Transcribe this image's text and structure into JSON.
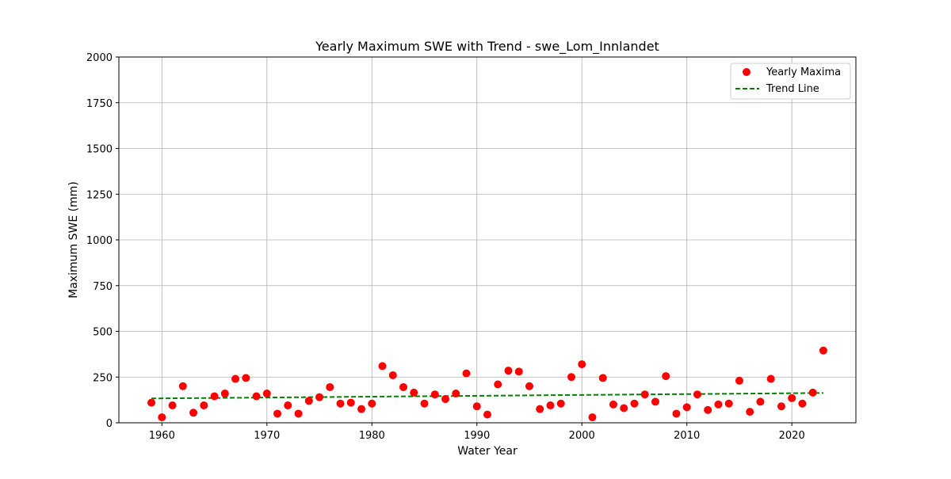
{
  "chart_data": {
    "type": "scatter",
    "title": "Yearly Maximum SWE with Trend - swe_Lom_Innlandet",
    "xlabel": "Water Year",
    "ylabel": "Maximum SWE (mm)",
    "xlim": [
      1955.9,
      2026.1
    ],
    "ylim": [
      0,
      2000
    ],
    "xticks": [
      1960,
      1970,
      1980,
      1990,
      2000,
      2010,
      2020
    ],
    "yticks": [
      0,
      250,
      500,
      750,
      1000,
      1250,
      1500,
      1750,
      2000
    ],
    "grid": true,
    "legend_position": "top-right",
    "series": [
      {
        "name": "Yearly Maxima",
        "kind": "scatter",
        "color": "#ff0000",
        "x": [
          1959,
          1960,
          1961,
          1962,
          1963,
          1964,
          1965,
          1966,
          1967,
          1968,
          1969,
          1970,
          1971,
          1972,
          1973,
          1974,
          1975,
          1976,
          1977,
          1978,
          1979,
          1980,
          1981,
          1982,
          1983,
          1984,
          1985,
          1986,
          1987,
          1988,
          1989,
          1990,
          1991,
          1992,
          1993,
          1994,
          1995,
          1996,
          1997,
          1998,
          1999,
          2000,
          2001,
          2002,
          2003,
          2004,
          2005,
          2006,
          2007,
          2008,
          2009,
          2010,
          2011,
          2012,
          2013,
          2014,
          2015,
          2016,
          2017,
          2018,
          2019,
          2020,
          2021,
          2022,
          2023
        ],
        "y": [
          110,
          30,
          95,
          200,
          55,
          95,
          145,
          160,
          240,
          245,
          145,
          160,
          50,
          95,
          50,
          120,
          140,
          195,
          105,
          110,
          75,
          105,
          310,
          260,
          195,
          165,
          105,
          155,
          130,
          160,
          270,
          90,
          45,
          210,
          285,
          280,
          200,
          75,
          95,
          105,
          250,
          320,
          30,
          245,
          100,
          80,
          105,
          155,
          115,
          255,
          50,
          85,
          155,
          70,
          100,
          105,
          230,
          60,
          115,
          240,
          90,
          135,
          105,
          165,
          395
        ]
      },
      {
        "name": "Trend Line",
        "kind": "line",
        "style": "dashed",
        "color": "#008000",
        "x": [
          1959,
          2023
        ],
        "y": [
          133,
          163
        ]
      }
    ]
  }
}
